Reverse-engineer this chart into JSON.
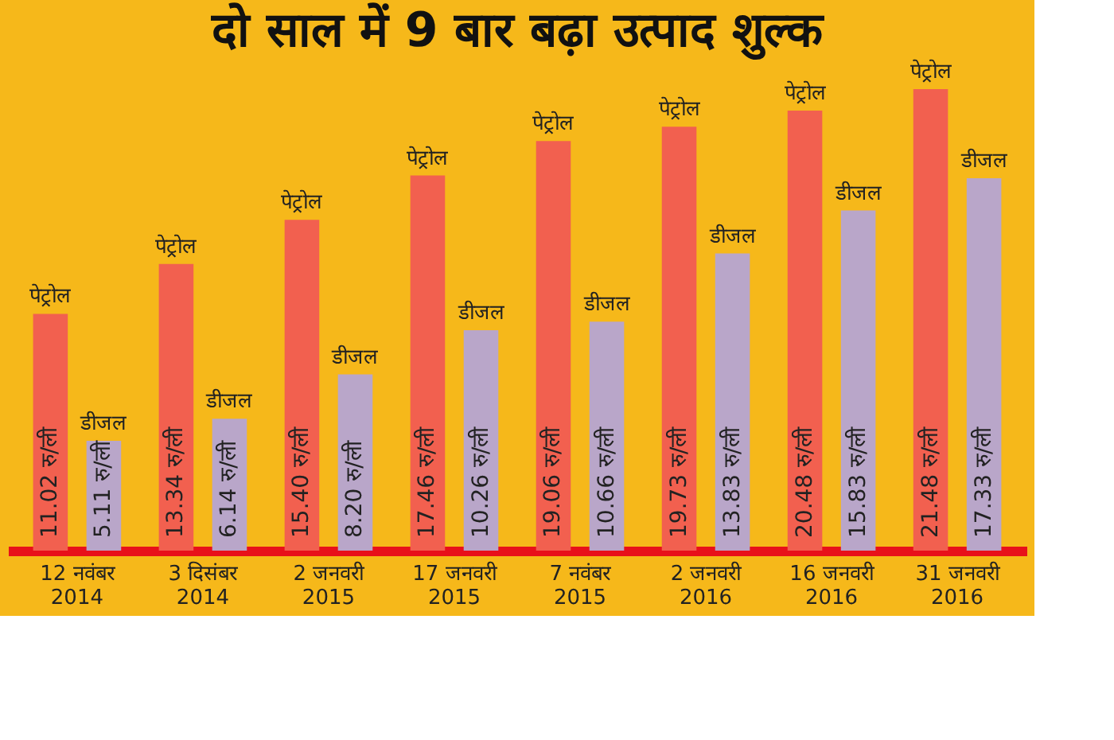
{
  "chart_data": {
    "type": "bar",
    "title": "दो साल में 9 बार बढ़ा उत्पाद शुल्क",
    "categories": [
      "12 नवंबर 2014",
      "3 दिसंबर 2014",
      "2 जनवरी 2015",
      "17 जनवरी 2015",
      "7 नवंबर 2015",
      "2 जनवरी 2016",
      "16 जनवरी 2016",
      "31 जनवरी 2016"
    ],
    "series": [
      {
        "name": "पेट्रोल",
        "color": "#f2604f",
        "values": [
          11.02,
          13.34,
          15.4,
          17.46,
          19.06,
          19.73,
          20.48,
          21.48
        ],
        "value_labels": [
          "11.02 रु/ली",
          "13.34 रु/ली",
          "15.40 रु/ली",
          "17.46 रु/ली",
          "19.06 रु/ली",
          "19.73 रु/ली",
          "20.48 रु/ली",
          "21.48 रु/ली"
        ]
      },
      {
        "name": "डीजल",
        "color": "#b9a6c9",
        "values": [
          5.11,
          6.14,
          8.2,
          10.26,
          10.66,
          13.83,
          15.83,
          17.33
        ],
        "value_labels": [
          "5.11 रु/ली",
          "6.14 रु/ली",
          "8.20 रु/ली",
          "10.26 रु/ली",
          "10.66 रु/ली",
          "13.83 रु/ली",
          "15.83 रु/ली",
          "17.33 रु/ली"
        ]
      }
    ],
    "legend": false,
    "grid": false
  }
}
